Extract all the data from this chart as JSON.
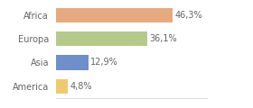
{
  "categories": [
    "Africa",
    "Europa",
    "Asia",
    "America"
  ],
  "values": [
    46.3,
    36.1,
    12.9,
    4.8
  ],
  "labels": [
    "46,3%",
    "36,1%",
    "12,9%",
    "4,8%"
  ],
  "bar_colors": [
    "#e8a97e",
    "#b5c98a",
    "#6e8fc9",
    "#f0c96e"
  ],
  "background_color": "#ffffff",
  "xlim": [
    0,
    60
  ],
  "bar_height": 0.62,
  "label_fontsize": 7.0,
  "tick_fontsize": 7.0,
  "label_color": "#666666",
  "tick_color": "#666666"
}
